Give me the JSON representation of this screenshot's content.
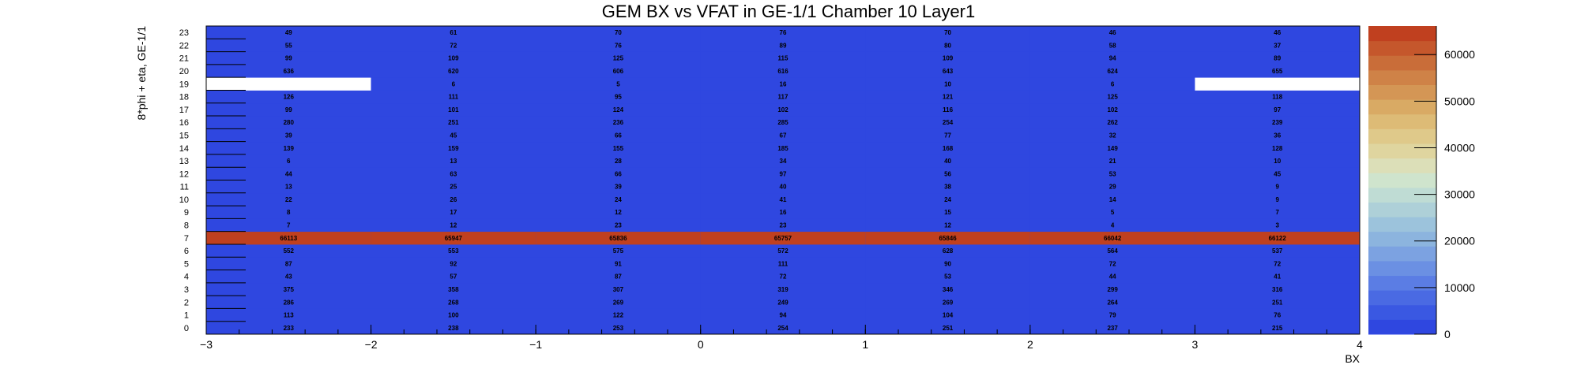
{
  "chart_data": {
    "type": "heatmap",
    "title": "GEM BX vs VFAT in GE-1/1 Chamber 10 Layer1",
    "xlabel": "BX",
    "ylabel": "8*phi + eta, GE-1/1",
    "x_range": [
      -3,
      4
    ],
    "x_ticks": [
      "−3",
      "−2",
      "−1",
      "0",
      "1",
      "2",
      "3",
      "4"
    ],
    "y_ticks": [
      "0",
      "1",
      "2",
      "3",
      "4",
      "5",
      "6",
      "7",
      "8",
      "9",
      "10",
      "11",
      "12",
      "13",
      "14",
      "15",
      "16",
      "17",
      "18",
      "19",
      "20",
      "21",
      "22",
      "23"
    ],
    "z_range": [
      0,
      66122
    ],
    "z_ticks": [
      "0",
      "10000",
      "20000",
      "30000",
      "40000",
      "50000",
      "60000"
    ],
    "z_tick_values": [
      0,
      10000,
      20000,
      30000,
      40000,
      50000,
      60000
    ],
    "colors": {
      "low": "#2f47e0",
      "high": "#c0401f",
      "empty": "#ffffff",
      "palette": [
        "#2f47e0",
        "#3a58e2",
        "#4a6ae3",
        "#5b7de4",
        "#6b90e3",
        "#7ca2e1",
        "#8cb4de",
        "#9cc3dc",
        "#aed0d8",
        "#bfdcd4",
        "#cfe4cd",
        "#dcdfb8",
        "#dfd59f",
        "#dfc98a",
        "#ddbb76",
        "#d9aa64",
        "#d49655",
        "#cf8247",
        "#c96d39",
        "#c5572c",
        "#c0401f"
      ]
    },
    "x_centers": [
      -2.5,
      -1.5,
      -0.5,
      0.5,
      1.5,
      2.5,
      3.5
    ],
    "rows": [
      {
        "y": 0,
        "values": [
          233,
          238,
          253,
          254,
          251,
          237,
          215
        ]
      },
      {
        "y": 1,
        "values": [
          113,
          100,
          122,
          94,
          104,
          79,
          76
        ]
      },
      {
        "y": 2,
        "values": [
          286,
          268,
          269,
          249,
          269,
          264,
          251
        ]
      },
      {
        "y": 3,
        "values": [
          375,
          358,
          307,
          319,
          346,
          299,
          316
        ]
      },
      {
        "y": 4,
        "values": [
          43,
          57,
          87,
          72,
          53,
          44,
          41
        ]
      },
      {
        "y": 5,
        "values": [
          87,
          92,
          91,
          111,
          90,
          72,
          72
        ]
      },
      {
        "y": 6,
        "values": [
          552,
          553,
          575,
          572,
          628,
          564,
          537
        ]
      },
      {
        "y": 7,
        "values": [
          66113,
          65947,
          65836,
          65757,
          65846,
          66042,
          66122
        ]
      },
      {
        "y": 8,
        "values": [
          7,
          12,
          23,
          23,
          12,
          4,
          3
        ]
      },
      {
        "y": 9,
        "values": [
          8,
          17,
          12,
          16,
          15,
          5,
          7
        ]
      },
      {
        "y": 10,
        "values": [
          22,
          26,
          24,
          41,
          24,
          14,
          9
        ]
      },
      {
        "y": 11,
        "values": [
          13,
          25,
          39,
          40,
          38,
          29,
          9
        ]
      },
      {
        "y": 12,
        "values": [
          44,
          63,
          66,
          97,
          56,
          53,
          45
        ]
      },
      {
        "y": 13,
        "values": [
          6,
          13,
          28,
          34,
          40,
          21,
          10
        ]
      },
      {
        "y": 14,
        "values": [
          139,
          159,
          155,
          185,
          168,
          149,
          128
        ]
      },
      {
        "y": 15,
        "values": [
          39,
          45,
          66,
          67,
          77,
          32,
          36
        ]
      },
      {
        "y": 16,
        "values": [
          280,
          251,
          236,
          285,
          254,
          262,
          239
        ]
      },
      {
        "y": 17,
        "values": [
          99,
          101,
          124,
          102,
          116,
          102,
          97
        ]
      },
      {
        "y": 18,
        "values": [
          126,
          111,
          95,
          117,
          121,
          125,
          118
        ]
      },
      {
        "y": 19,
        "values": [
          null,
          6,
          5,
          16,
          10,
          6,
          null
        ]
      },
      {
        "y": 20,
        "values": [
          636,
          620,
          606,
          616,
          643,
          624,
          655
        ]
      },
      {
        "y": 21,
        "values": [
          99,
          109,
          125,
          115,
          109,
          94,
          89
        ]
      },
      {
        "y": 22,
        "values": [
          55,
          72,
          76,
          89,
          80,
          58,
          37
        ]
      },
      {
        "y": 23,
        "values": [
          49,
          61,
          70,
          76,
          70,
          46,
          46
        ]
      }
    ]
  }
}
